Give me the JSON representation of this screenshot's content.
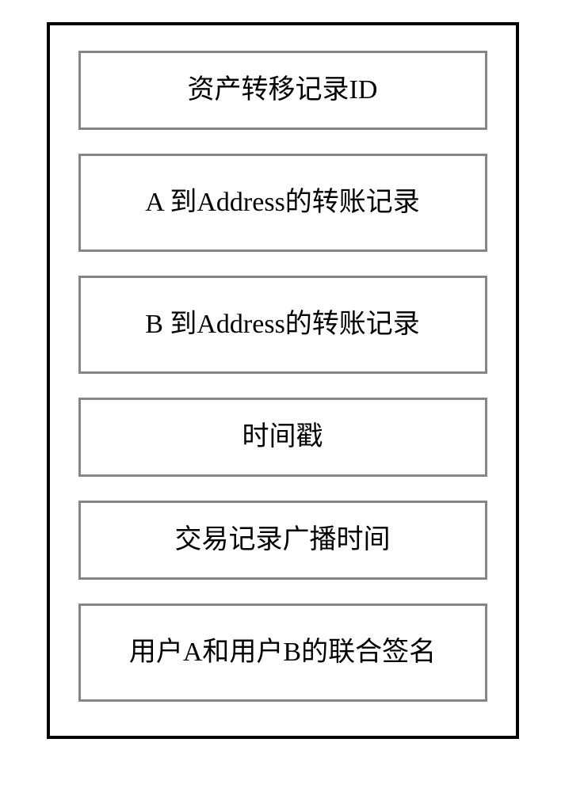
{
  "diagram": {
    "type": "flowchart",
    "background_color": "#ffffff",
    "outer_border_color": "#000000",
    "box_border_color": "#868686",
    "text_color": "#000000",
    "font_size_pt": 26,
    "boxes": [
      {
        "label": "资产转移记录ID",
        "lines": 1
      },
      {
        "label": "A 到Address的转账记录",
        "lines": 2
      },
      {
        "label": "B 到Address的转账记录",
        "lines": 2
      },
      {
        "label": "时间戳",
        "lines": 1
      },
      {
        "label": "交易记录广播时间",
        "lines": 1
      },
      {
        "label": "用户A和用户B的联合签名",
        "lines": 2
      }
    ]
  }
}
